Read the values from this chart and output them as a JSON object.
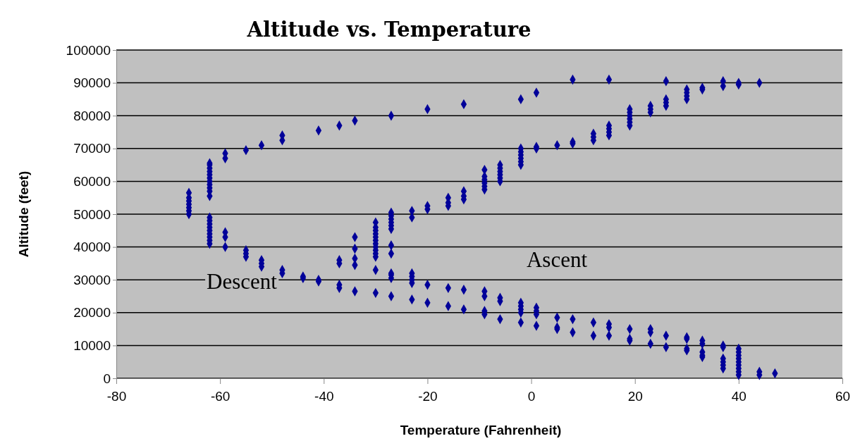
{
  "chart_data": {
    "type": "scatter",
    "title": "Altitude vs. Temperature",
    "xlabel": "Temperature (Fahrenheit)",
    "ylabel": "Altitude (feet)",
    "xlim": [
      -80,
      60
    ],
    "xticks": [
      -80,
      -60,
      -40,
      -20,
      0,
      20,
      40,
      60
    ],
    "ylim": [
      0,
      100000
    ],
    "yticks": [
      0,
      10000,
      20000,
      30000,
      40000,
      50000,
      60000,
      70000,
      80000,
      90000,
      100000
    ],
    "grid": "y",
    "marker": "diamond",
    "annotations": [
      "Ascent",
      "Descent"
    ],
    "series": [
      {
        "color": "#000099",
        "x": [
          -66,
          -66,
          -66,
          -66,
          -66,
          -66,
          -66,
          -62,
          -62,
          -62,
          -62,
          -62,
          -62,
          -62,
          -62,
          -62,
          -62,
          -62,
          -62,
          -62,
          -62,
          -62,
          -62,
          -62,
          -62,
          -62,
          -62,
          -59,
          -59,
          -59,
          -59,
          -59,
          -55,
          -55,
          -55,
          -55,
          -52,
          -52,
          -52,
          -52,
          -48,
          -48,
          -48,
          -48,
          -44,
          -44,
          -41,
          -41,
          -41,
          -37,
          -37,
          -37,
          -37,
          -37,
          -34,
          -34,
          -34,
          -34,
          -34,
          -34,
          -30,
          -30,
          -30,
          -30,
          -30,
          -30,
          -30,
          -30,
          -30,
          -30,
          -30,
          -30,
          -30,
          -27,
          -27,
          -27,
          -27,
          -27,
          -27,
          -27,
          -27,
          -27,
          -27,
          -27,
          -27,
          -27,
          -23,
          -23,
          -23,
          -23,
          -23,
          -23,
          -23,
          -20,
          -20,
          -20,
          -20,
          -20,
          -16,
          -16,
          -16,
          -16,
          -16,
          -13,
          -13,
          -13,
          -13,
          -13,
          -13,
          -9,
          -9,
          -9,
          -9,
          -9,
          -9,
          -9,
          -9,
          -9,
          -9,
          -6,
          -6,
          -6,
          -6,
          -6,
          -6,
          -6,
          -6,
          -6,
          -2,
          -2,
          -2,
          -2,
          -2,
          -2,
          -2,
          -2,
          -2,
          -2,
          -2,
          -2,
          1,
          1,
          1,
          1,
          1,
          1,
          1,
          5,
          5,
          5,
          5,
          8,
          8,
          8,
          8,
          8,
          12,
          12,
          12,
          12,
          12,
          15,
          15,
          15,
          15,
          15,
          15,
          15,
          15,
          19,
          19,
          19,
          19,
          19,
          19,
          19,
          19,
          19,
          23,
          23,
          23,
          23,
          23,
          23,
          26,
          26,
          26,
          26,
          26,
          26,
          30,
          30,
          30,
          30,
          30,
          30,
          30,
          30,
          33,
          33,
          33,
          33,
          33,
          33,
          33,
          37,
          37,
          37,
          37,
          37,
          37,
          37,
          37,
          40,
          40,
          40,
          40,
          40,
          40,
          40,
          40,
          40,
          40,
          40,
          44,
          44,
          44,
          47
        ],
        "values": [
          50000,
          51000,
          52000,
          53000,
          54000,
          55000,
          56500,
          55500,
          57000,
          58000,
          59000,
          60000,
          61000,
          62000,
          63000,
          64000,
          65000,
          65500,
          41000,
          42000,
          43000,
          44000,
          45000,
          46000,
          47000,
          48000,
          49000,
          67000,
          68500,
          40000,
          43000,
          44500,
          69500,
          37000,
          38000,
          39000,
          71000,
          34000,
          35000,
          36000,
          72500,
          74000,
          32000,
          33000,
          30500,
          31000,
          75500,
          29500,
          30000,
          77000,
          35000,
          36000,
          27500,
          28500,
          78500,
          43000,
          39500,
          36500,
          34500,
          26500,
          37000,
          38000,
          39000,
          40000,
          41000,
          42000,
          43000,
          44000,
          45000,
          46000,
          47500,
          33000,
          26000,
          80000,
          45500,
          46500,
          47500,
          48500,
          49500,
          50500,
          40500,
          38000,
          30500,
          31500,
          32000,
          25000,
          49000,
          51000,
          29000,
          30000,
          31000,
          32000,
          24000,
          82000,
          51500,
          52500,
          28500,
          23000,
          52500,
          53500,
          55000,
          27500,
          22000,
          83500,
          54500,
          55500,
          57000,
          27000,
          21000,
          57500,
          58500,
          59500,
          60500,
          61500,
          63500,
          25000,
          26500,
          19500,
          20500,
          60000,
          61000,
          62000,
          63000,
          64000,
          65000,
          23500,
          24500,
          18000,
          85000,
          65000,
          66000,
          67000,
          68000,
          69000,
          70000,
          20000,
          21000,
          22000,
          23000,
          17000,
          87000,
          70000,
          70500,
          19500,
          20500,
          21500,
          16000,
          71000,
          18500,
          15000,
          15500,
          91000,
          71500,
          72000,
          18000,
          14000,
          72500,
          73500,
          74500,
          17000,
          13000,
          91000,
          74000,
          75000,
          76000,
          77000,
          15500,
          16500,
          13000,
          77000,
          78000,
          79000,
          80000,
          81000,
          82000,
          15000,
          11500,
          12000,
          81000,
          82000,
          83000,
          14000,
          15000,
          10500,
          90500,
          83000,
          84000,
          85000,
          13000,
          9500,
          85000,
          86000,
          87000,
          88000,
          12000,
          12500,
          8500,
          9000,
          88000,
          88500,
          10500,
          11500,
          6500,
          7000,
          8000,
          89000,
          90500,
          9500,
          10000,
          3000,
          4000,
          5000,
          6000,
          89500,
          90000,
          1000,
          2000,
          3000,
          4000,
          5000,
          6000,
          7000,
          8000,
          9000,
          90000,
          1000,
          2000,
          1500
        ]
      }
    ]
  }
}
